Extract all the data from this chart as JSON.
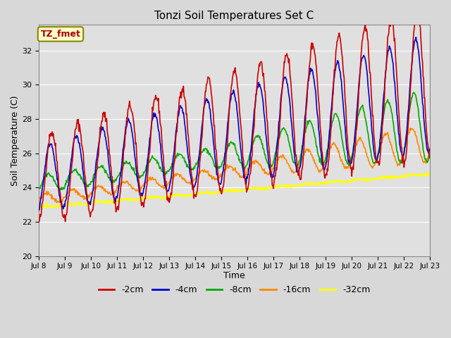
{
  "title": "Tonzi Soil Temperatures Set C",
  "xlabel": "Time",
  "ylabel": "Soil Temperature (C)",
  "ylim": [
    20,
    33.5
  ],
  "series": {
    "-2cm": {
      "color": "#cc0000",
      "linewidth": 1.2
    },
    "-4cm": {
      "color": "#0000cc",
      "linewidth": 1.2
    },
    "-8cm": {
      "color": "#00aa00",
      "linewidth": 1.2
    },
    "-16cm": {
      "color": "#ff8800",
      "linewidth": 1.2
    },
    "-32cm": {
      "color": "#ffff00",
      "linewidth": 1.5
    }
  },
  "legend_labels": [
    "-2cm",
    "-4cm",
    "-8cm",
    "-16cm",
    "-32cm"
  ],
  "legend_colors": [
    "#cc0000",
    "#0000cc",
    "#00aa00",
    "#ff8800",
    "#ffff00"
  ],
  "annotation_text": "TZ_fmet",
  "annotation_color": "#aa0000",
  "annotation_bg": "#ffffcc",
  "annotation_border": "#888800",
  "background_color": "#d8d8d8",
  "plot_bg_color": "#e0e0e0",
  "grid_color": "#c8c8c8",
  "tick_dates": [
    "Jul 8",
    "Jul 9",
    "Jul 10",
    "Jul 11",
    "Jul 12",
    "Jul 13",
    "Jul 14",
    "Jul 15",
    "Jul 16",
    "Jul 17",
    "Jul 18",
    "Jul 19",
    "Jul 20",
    "Jul 21",
    "Jul 22",
    "Jul 23"
  ],
  "yticks": [
    20,
    22,
    24,
    26,
    28,
    30,
    32
  ]
}
